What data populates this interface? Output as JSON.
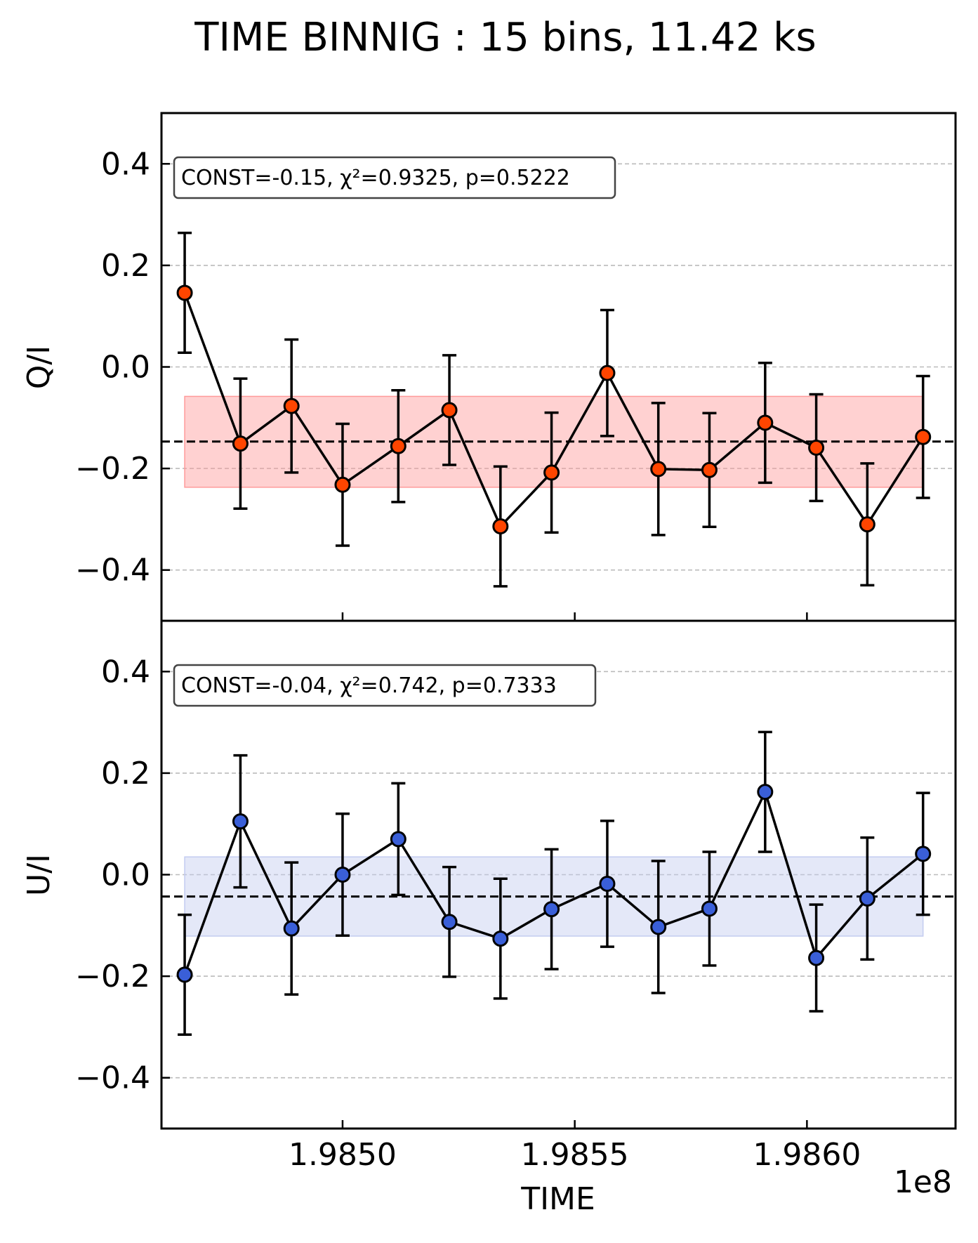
{
  "chart_data": {
    "type": "scatter",
    "title": "TIME BINNIG : 15 bins, 11.42 ks",
    "xlabel": "TIME",
    "x_offset_label": "1e8",
    "x_scale": 100000000,
    "xlim": [
      1.98461,
      1.98632
    ],
    "x_ticks": [
      1.985,
      1.9855,
      1.986
    ],
    "x_tick_labels": [
      "1.9850",
      "1.9855",
      "1.9860"
    ],
    "x": [
      1.98466,
      1.98478,
      1.98489,
      1.985,
      1.98512,
      1.98523,
      1.98534,
      1.98545,
      1.98557,
      1.98568,
      1.98579,
      1.98591,
      1.98602,
      1.98613,
      1.98625
    ],
    "panels": [
      {
        "id": "qi",
        "ylabel": "Q/I",
        "ylim": [
          -0.5,
          0.5
        ],
        "y_ticks": [
          0.4,
          0.2,
          0.0,
          -0.2,
          -0.4
        ],
        "y_tick_labels": [
          "0.4",
          "0.2",
          "0.0",
          "−0.2",
          "−0.4"
        ],
        "color": "#ff4500",
        "band_color": "#ff9a9a",
        "const": -0.147,
        "band": [
          -0.237,
          -0.058
        ],
        "stat_label": "CONST=-0.15, χ²=0.9325, p=0.5222",
        "values": [
          0.146,
          -0.151,
          -0.077,
          -0.232,
          -0.156,
          -0.085,
          -0.314,
          -0.208,
          -0.012,
          -0.201,
          -0.203,
          -0.11,
          -0.159,
          -0.31,
          -0.138
        ],
        "errors": [
          0.118,
          0.128,
          0.131,
          0.12,
          0.11,
          0.108,
          0.118,
          0.118,
          0.124,
          0.13,
          0.112,
          0.118,
          0.105,
          0.12,
          0.12
        ]
      },
      {
        "id": "ui",
        "ylabel": "U/I",
        "ylim": [
          -0.5,
          0.5
        ],
        "y_ticks": [
          0.4,
          0.2,
          0.0,
          -0.2,
          -0.4
        ],
        "y_tick_labels": [
          "0.4",
          "0.2",
          "0.0",
          "−0.2",
          "−0.4"
        ],
        "color": "#3a5fd8",
        "band_color": "#c3ccf0",
        "const": -0.043,
        "band": [
          -0.121,
          0.035
        ],
        "stat_label": "CONST=-0.04, χ²=0.742, p=0.7333",
        "values": [
          -0.197,
          0.105,
          -0.106,
          0.0,
          0.07,
          -0.093,
          -0.126,
          -0.068,
          -0.018,
          -0.103,
          -0.067,
          0.163,
          -0.164,
          -0.047,
          0.041
        ],
        "errors": [
          0.118,
          0.13,
          0.13,
          0.12,
          0.11,
          0.108,
          0.118,
          0.118,
          0.124,
          0.13,
          0.112,
          0.118,
          0.105,
          0.12,
          0.12
        ]
      }
    ]
  }
}
